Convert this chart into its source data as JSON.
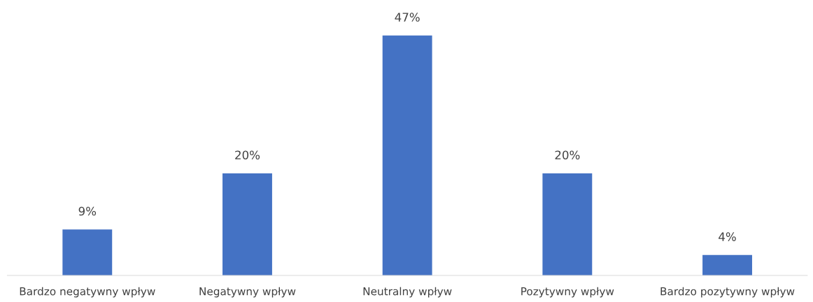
{
  "chart_data": {
    "type": "bar",
    "categories": [
      "Bardzo negatywny wpływ",
      "Negatywny wpływ",
      "Neutralny wpływ",
      "Pozytywny wpływ",
      "Bardzo pozytywny wpływ"
    ],
    "values": [
      9,
      20,
      47,
      20,
      4
    ],
    "value_labels": [
      "9%",
      "20%",
      "47%",
      "20%",
      "4%"
    ],
    "color": "#4472c4",
    "grid": false,
    "legend": false
  }
}
